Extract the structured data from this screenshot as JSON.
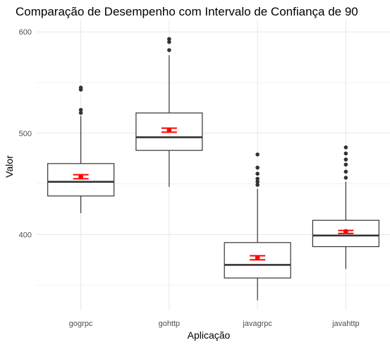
{
  "chart_data": {
    "type": "boxplot",
    "title": "Comparação de Desempenho com Intervalo de Confiança de 90",
    "xlabel": "Aplicação",
    "ylabel": "Valor",
    "ylim": [
      325,
      612
    ],
    "yticks": [
      400,
      500,
      600
    ],
    "grid": true,
    "mean_ci_color": "#ff0000",
    "box_color": "#333333",
    "categories": [
      "gogrpc",
      "gohttp",
      "javagrpc",
      "javahttp"
    ],
    "boxes": [
      {
        "category": "gogrpc",
        "q1": 438,
        "median": 452,
        "q3": 470,
        "whisker_low": 421,
        "whisker_high": 517,
        "outliers": [
          520,
          523,
          543,
          545
        ],
        "mean": 457,
        "ci_low": 455,
        "ci_high": 459
      },
      {
        "category": "gohttp",
        "q1": 483,
        "median": 496,
        "q3": 520,
        "whisker_low": 447,
        "whisker_high": 577,
        "outliers": [
          582,
          590,
          593
        ],
        "mean": 503,
        "ci_low": 501,
        "ci_high": 505
      },
      {
        "category": "javagrpc",
        "q1": 357,
        "median": 370,
        "q3": 392,
        "whisker_low": 335,
        "whisker_high": 445,
        "outliers": [
          449,
          452,
          455,
          460,
          466,
          479
        ],
        "mean": 377,
        "ci_low": 375,
        "ci_high": 379
      },
      {
        "category": "javahttp",
        "q1": 388,
        "median": 399,
        "q3": 414,
        "whisker_low": 366,
        "whisker_high": 452,
        "outliers": [
          456,
          462,
          469,
          474,
          480,
          486
        ],
        "mean": 403,
        "ci_low": 401,
        "ci_high": 404
      }
    ]
  }
}
